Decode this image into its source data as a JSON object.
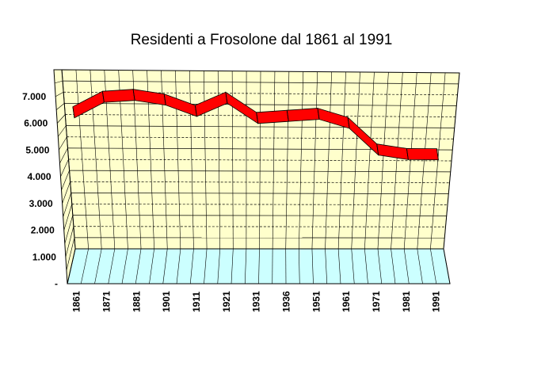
{
  "chart_data": {
    "type": "line",
    "title": "Residenti a Frosolone dal 1861 al 1991",
    "categories": [
      "1861",
      "1871",
      "1881",
      "1901",
      "1911",
      "1921",
      "1931",
      "1936",
      "1951",
      "1961",
      "1971",
      "1981",
      "1991"
    ],
    "series": [
      {
        "values": [
          6100,
          6800,
          6900,
          6700,
          6200,
          6800,
          5900,
          6000,
          6100,
          5700,
          4500,
          4300,
          4300
        ]
      }
    ],
    "yticks": [
      "-",
      "1.000",
      "2.000",
      "3.000",
      "4.000",
      "5.000",
      "6.000",
      "7.000"
    ],
    "ylim": [
      0,
      8000
    ],
    "style": "3d-line",
    "colors": {
      "line": "#ff0000",
      "back_wall": "#ffffcc",
      "floor": "#ccffff",
      "grid": "#000000"
    }
  }
}
